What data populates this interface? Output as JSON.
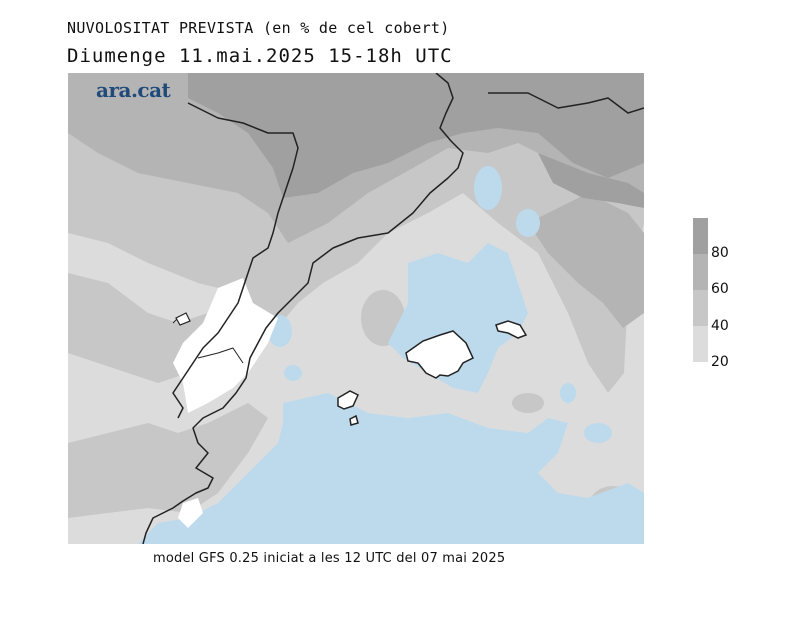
{
  "header": {
    "title": "NUVOLOSITAT PREVISTA (en % de cel cobert)",
    "subtitle": "Diumenge  11.mai.2025  15-18h  UTC"
  },
  "map": {
    "logo": "ara.cat",
    "clear_sky_color": "#ffffff",
    "sea_color": "#bddaec"
  },
  "legend": {
    "unit": "%",
    "bands": [
      {
        "from": 20,
        "to": 40,
        "color": "#dcdcdc"
      },
      {
        "from": 40,
        "to": 60,
        "color": "#c7c7c7"
      },
      {
        "from": 60,
        "to": 80,
        "color": "#b4b4b4"
      },
      {
        "from": 80,
        "to": 100,
        "color": "#a0a0a0"
      }
    ],
    "labels": [
      "80",
      "60",
      "40",
      "20"
    ]
  },
  "footer": {
    "text": "model GFS 0.25 iniciat a les 12 UTC del 07 mai 2025"
  }
}
